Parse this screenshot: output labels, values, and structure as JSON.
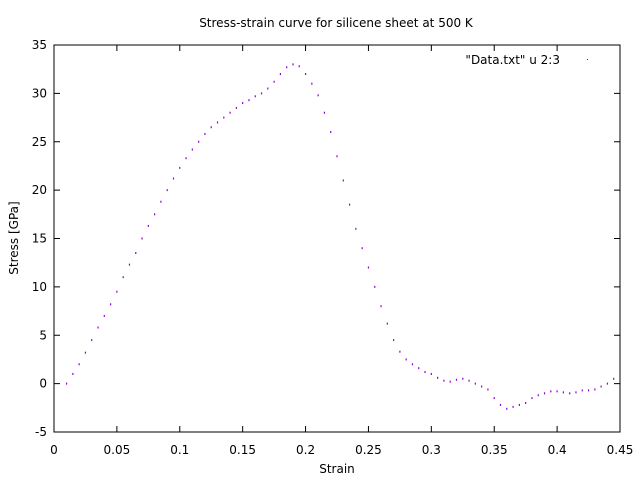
{
  "chart_data": {
    "type": "scatter",
    "title": "Stress-strain curve for silicene sheet at 500 K",
    "xlabel": "Strain",
    "ylabel": "Stress [GPa]",
    "xlim": [
      0,
      0.45
    ],
    "ylim": [
      -5,
      35
    ],
    "xticks": [
      "0",
      "0.05",
      "0.1",
      "0.15",
      "0.2",
      "0.25",
      "0.3",
      "0.35",
      "0.4",
      "0.45"
    ],
    "yticks": [
      "-5",
      "0",
      "5",
      "10",
      "15",
      "20",
      "25",
      "30",
      "35"
    ],
    "grid": false,
    "legend_position": "top-right",
    "series": [
      {
        "name": "\"Data.txt\" u 2:3",
        "color": "#9400d3",
        "marker": "dot",
        "x": [
          0.01,
          0.015,
          0.02,
          0.025,
          0.03,
          0.035,
          0.04,
          0.045,
          0.05,
          0.055,
          0.06,
          0.065,
          0.07,
          0.075,
          0.08,
          0.085,
          0.09,
          0.095,
          0.1,
          0.105,
          0.11,
          0.115,
          0.12,
          0.125,
          0.13,
          0.135,
          0.14,
          0.145,
          0.15,
          0.155,
          0.16,
          0.165,
          0.17,
          0.175,
          0.18,
          0.185,
          0.19,
          0.195,
          0.2,
          0.205,
          0.21,
          0.215,
          0.22,
          0.225,
          0.23,
          0.235,
          0.24,
          0.245,
          0.25,
          0.255,
          0.26,
          0.265,
          0.27,
          0.275,
          0.28,
          0.285,
          0.29,
          0.295,
          0.3,
          0.305,
          0.31,
          0.315,
          0.32,
          0.325,
          0.33,
          0.335,
          0.34,
          0.345,
          0.35,
          0.355,
          0.36,
          0.365,
          0.37,
          0.375,
          0.38,
          0.385,
          0.39,
          0.395,
          0.4,
          0.405,
          0.41,
          0.415,
          0.42,
          0.425,
          0.43,
          0.435,
          0.44,
          0.445
        ],
        "y": [
          0.0,
          1.0,
          2.0,
          3.2,
          4.5,
          5.8,
          7.0,
          8.2,
          9.5,
          11.0,
          12.3,
          13.5,
          15.0,
          16.3,
          17.5,
          18.8,
          20.0,
          21.2,
          22.3,
          23.3,
          24.2,
          25.0,
          25.8,
          26.5,
          27.0,
          27.5,
          28.0,
          28.5,
          29.0,
          29.3,
          29.7,
          30.0,
          30.5,
          31.2,
          32.0,
          32.7,
          33.0,
          32.8,
          32.0,
          31.0,
          29.8,
          28.0,
          26.0,
          23.5,
          21.0,
          18.5,
          16.0,
          14.0,
          12.0,
          10.0,
          8.0,
          6.2,
          4.5,
          3.3,
          2.5,
          2.0,
          1.6,
          1.2,
          1.0,
          0.6,
          0.3,
          0.2,
          0.4,
          0.5,
          0.3,
          0.0,
          -0.3,
          -0.6,
          -1.5,
          -2.2,
          -2.6,
          -2.4,
          -2.2,
          -2.0,
          -1.5,
          -1.2,
          -1.0,
          -0.8,
          -0.8,
          -0.9,
          -1.0,
          -0.9,
          -0.7,
          -0.7,
          -0.6,
          -0.3,
          0.0,
          0.5
        ]
      }
    ]
  }
}
